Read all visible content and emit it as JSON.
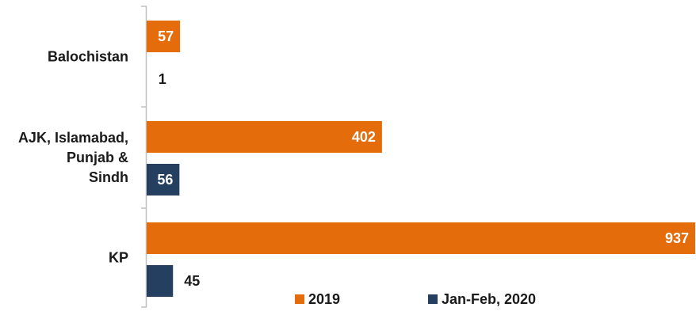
{
  "chart_data": {
    "type": "bar",
    "orientation": "horizontal",
    "categories": [
      [
        "Balochistan"
      ],
      [
        "AJK, Islamabad,",
        "Punjab &",
        "Sindh"
      ],
      [
        "KP"
      ]
    ],
    "series": [
      {
        "name": "2019",
        "values": [
          57,
          402,
          937
        ]
      },
      {
        "name": "Jan-Feb, 2020",
        "values": [
          1,
          56,
          45
        ]
      }
    ],
    "xlim": [
      0,
      937
    ],
    "grid": false,
    "legend": "bottom-right",
    "data_labels": true
  },
  "colors": {
    "series_2019": "#E46C0A",
    "series_2020": "#243F60",
    "axis": "#bfbfbf"
  }
}
